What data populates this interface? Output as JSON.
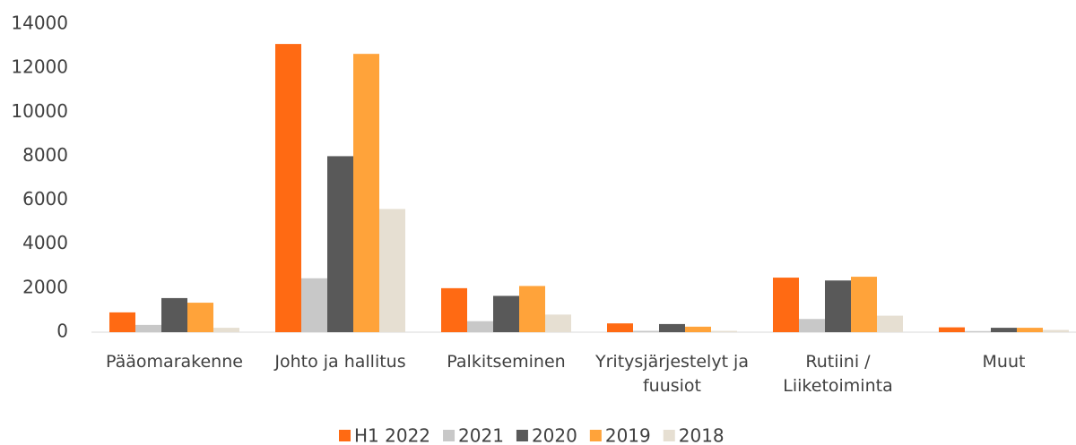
{
  "chart_data": {
    "type": "bar",
    "categories": [
      "Pääomarakenne",
      "Johto ja hallitus",
      "Palkitseminen",
      "Yritysjärjestelyt ja fuusiot",
      "Rutiini / Liiketoiminta",
      "Muut"
    ],
    "series": [
      {
        "name": "H1 2022",
        "color": "#ff6a13",
        "values": [
          900,
          13100,
          2000,
          400,
          2480,
          220
        ]
      },
      {
        "name": "2021",
        "color": "#c8c8c8",
        "values": [
          330,
          2450,
          500,
          60,
          600,
          50
        ]
      },
      {
        "name": "2020",
        "color": "#595959",
        "values": [
          1550,
          8000,
          1650,
          370,
          2350,
          200
        ]
      },
      {
        "name": "2019",
        "color": "#ffa33a",
        "values": [
          1340,
          12650,
          2100,
          250,
          2520,
          200
        ]
      },
      {
        "name": "2018",
        "color": "#e6dfd2",
        "values": [
          200,
          5600,
          800,
          60,
          750,
          100
        ]
      }
    ],
    "ylim": [
      0,
      14000
    ],
    "yticks": [
      0,
      2000,
      4000,
      6000,
      8000,
      10000,
      12000,
      14000
    ],
    "grid": false,
    "legend": "bottom"
  }
}
